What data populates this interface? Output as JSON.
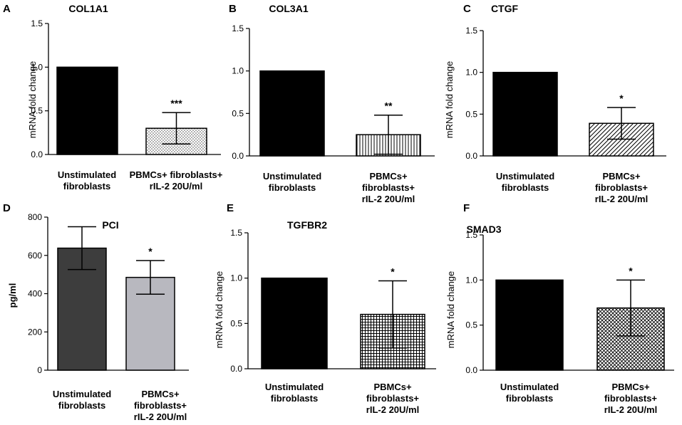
{
  "chart_data": [
    {
      "panel": "A",
      "type": "bar",
      "title": "COL1A1",
      "ylabel": "mRNA fold change",
      "ylim": [
        0,
        1.5
      ],
      "yticks": [
        0.0,
        0.5,
        1.0,
        1.5
      ],
      "tick_labels": [
        "0.0",
        "0.5",
        "1.0",
        "1.5"
      ],
      "categories": [
        [
          "Unstimulated",
          "fibroblasts"
        ],
        [
          "PBMCs+ fibroblasts+",
          "rIL-2 20U/ml"
        ]
      ],
      "values": [
        1.0,
        0.3
      ],
      "errors": [
        0,
        0.18
      ],
      "fills": [
        "#000000",
        "pattern:dots"
      ],
      "significance": [
        "",
        "***"
      ]
    },
    {
      "panel": "B",
      "type": "bar",
      "title": "COL3A1",
      "ylabel": "",
      "ylim": [
        0,
        1.5
      ],
      "yticks": [
        0.0,
        0.5,
        1.0,
        1.5
      ],
      "tick_labels": [
        "0.0",
        "0.5",
        "1.0",
        "1.5"
      ],
      "categories": [
        [
          "Unstimulated",
          "fibroblasts"
        ],
        [
          "PBMCs+",
          "fibroblasts+",
          "rIL-2 20U/ml"
        ]
      ],
      "values": [
        1.0,
        0.25
      ],
      "errors": [
        0,
        0.23
      ],
      "fills": [
        "#000000",
        "pattern:vertical-lines"
      ],
      "significance": [
        "",
        "**"
      ]
    },
    {
      "panel": "C",
      "type": "bar",
      "title": "CTGF",
      "ylabel": "mRNA fold change",
      "ylim": [
        0,
        1.5
      ],
      "yticks": [
        0.0,
        0.5,
        1.0,
        1.5
      ],
      "tick_labels": [
        "0.0",
        "0.5",
        "1.0",
        "1.5"
      ],
      "categories": [
        [
          "Unstimulated",
          "fibroblasts"
        ],
        [
          "PBMCs+",
          "fibroblasts+",
          "rIL-2 20U/ml"
        ]
      ],
      "values": [
        1.0,
        0.39
      ],
      "errors": [
        0,
        0.19
      ],
      "fills": [
        "#000000",
        "pattern:diagonal"
      ],
      "significance": [
        "",
        "*"
      ]
    },
    {
      "panel": "D",
      "type": "bar",
      "title": "PCI",
      "ylabel": "pg/ml",
      "ylim": [
        0,
        800
      ],
      "yticks": [
        0,
        200,
        400,
        600,
        800
      ],
      "tick_labels": [
        "0",
        "200",
        "400",
        "600",
        "800"
      ],
      "categories": [
        [
          "Unstimulated",
          "fibroblasts"
        ],
        [
          "PBMCs+",
          "fibroblasts+",
          "rIL-2 20U/ml"
        ]
      ],
      "values": [
        638,
        485
      ],
      "errors": [
        112,
        88
      ],
      "fills": [
        "#3d3d3d",
        "#b8b8bf"
      ],
      "significance": [
        "",
        "*"
      ]
    },
    {
      "panel": "E",
      "type": "bar",
      "title": "TGFBR2",
      "ylabel": "mRNA fold change",
      "ylim": [
        0,
        1.5
      ],
      "yticks": [
        0.0,
        0.5,
        1.0,
        1.5
      ],
      "tick_labels": [
        "0.0",
        "0.5",
        "1.0",
        "1.5"
      ],
      "categories": [
        [
          "Unstimulated",
          "fibroblasts"
        ],
        [
          "PBMCs+",
          "fibroblasts+",
          "rIL-2 20U/ml"
        ]
      ],
      "values": [
        1.0,
        0.6
      ],
      "errors": [
        0,
        0.37
      ],
      "fills": [
        "#000000",
        "pattern:grid"
      ],
      "significance": [
        "",
        "*"
      ]
    },
    {
      "panel": "F",
      "type": "bar",
      "title": "SMAD3",
      "ylabel": "mRNA fold change",
      "ylim": [
        0,
        1.5
      ],
      "yticks": [
        0.0,
        0.5,
        1.0,
        1.5
      ],
      "tick_labels": [
        "0.0",
        "0.5",
        "1.0",
        "1.5"
      ],
      "categories": [
        [
          "Unstimulated",
          "fibroblasts"
        ],
        [
          "PBMCs+",
          "fibroblasts+",
          "rIL-2 20U/ml"
        ]
      ],
      "values": [
        1.0,
        0.69
      ],
      "errors": [
        0,
        0.31
      ],
      "fills": [
        "#000000",
        "pattern:crosshatch"
      ],
      "significance": [
        "",
        "*"
      ]
    }
  ]
}
